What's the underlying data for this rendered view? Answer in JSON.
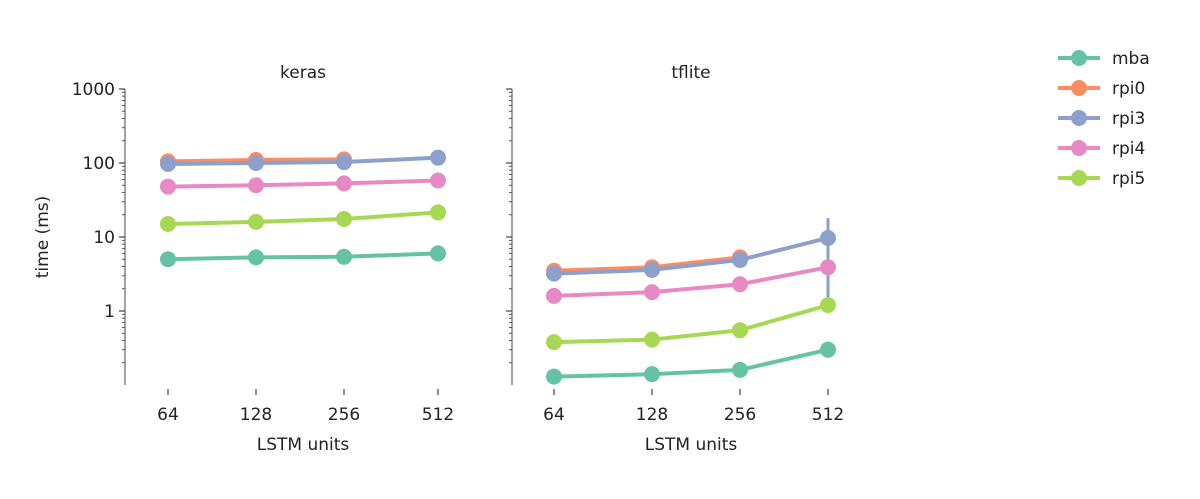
{
  "chart_data": {
    "type": "line",
    "y_scale": "log",
    "ylabel": "time (ms)",
    "ylim": [
      0.1,
      1000
    ],
    "y_ticks": [
      1,
      10,
      100,
      1000
    ],
    "y_tick_labels": [
      "1",
      "10",
      "100",
      "1000"
    ],
    "grid": false,
    "legend_position": "top-right",
    "categories": [
      "64",
      "128",
      "256",
      "512"
    ],
    "colors": {
      "mba": "#66c2a5",
      "rpi0": "#fc8d62",
      "rpi3": "#8da0cb",
      "rpi4": "#e78ac3",
      "rpi5": "#a6d854"
    },
    "legend": [
      "mba",
      "rpi0",
      "rpi3",
      "rpi4",
      "rpi5"
    ],
    "panels": [
      {
        "title": "keras",
        "xlabel": "LSTM units",
        "series": [
          {
            "name": "mba",
            "values": [
              5.0,
              5.3,
              5.4,
              6.0
            ]
          },
          {
            "name": "rpi0",
            "values": [
              105,
              110,
              112,
              null
            ]
          },
          {
            "name": "rpi3",
            "values": [
              97,
              100,
              103,
              118
            ]
          },
          {
            "name": "rpi4",
            "values": [
              48,
              50,
              53,
              58
            ]
          },
          {
            "name": "rpi5",
            "values": [
              15,
              16,
              17.5,
              21.5
            ]
          }
        ]
      },
      {
        "title": "tflite",
        "xlabel": "LSTM units",
        "series": [
          {
            "name": "mba",
            "values": [
              0.13,
              0.14,
              0.16,
              0.3
            ]
          },
          {
            "name": "rpi0",
            "values": [
              3.5,
              3.9,
              5.3,
              null
            ]
          },
          {
            "name": "rpi3",
            "values": [
              3.2,
              3.6,
              4.9,
              9.7
            ]
          },
          {
            "name": "rpi4",
            "values": [
              1.6,
              1.8,
              2.3,
              3.9
            ]
          },
          {
            "name": "rpi5",
            "values": [
              0.38,
              0.41,
              0.55,
              1.2
            ]
          }
        ],
        "error_bars": [
          {
            "name": "rpi3",
            "category": "512",
            "low": 1.0,
            "high": 18
          }
        ]
      }
    ]
  }
}
